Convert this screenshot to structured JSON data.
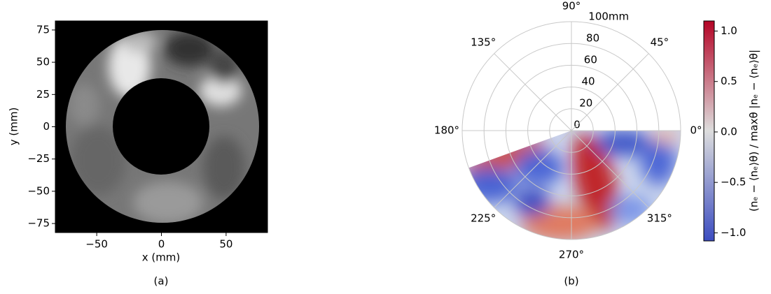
{
  "chart_data": [
    {
      "type": "image",
      "label": "(a)",
      "xlabel": "x (mm)",
      "ylabel": "y (mm)",
      "xlim": [
        -82,
        82
      ],
      "ylim": [
        -82,
        82
      ],
      "xticks": [
        {
          "value": -50,
          "label": "−50"
        },
        0,
        50
      ],
      "yticks": [
        75,
        50,
        25,
        0,
        {
          "value": -25,
          "label": "−25"
        },
        {
          "value": -50,
          "label": "−50"
        },
        {
          "value": -75,
          "label": "−75"
        }
      ]
    },
    {
      "type": "polar",
      "label": "(b)",
      "rlim": [
        0,
        100
      ],
      "rticks": [
        0,
        20,
        40,
        60,
        80,
        {
          "value": 100,
          "label": "100mm"
        }
      ],
      "thetaticks": [
        {
          "value": 0,
          "label": "0°"
        },
        {
          "value": 45,
          "label": "45°"
        },
        {
          "value": 90,
          "label": "90°"
        },
        {
          "value": 135,
          "label": "135°"
        },
        {
          "value": 180,
          "label": "180°"
        },
        {
          "value": 225,
          "label": "225°"
        },
        {
          "value": 270,
          "label": "270°"
        },
        {
          "value": 315,
          "label": "315°"
        }
      ],
      "colorbar": {
        "label": "(nₑ − ⟨nₑ⟩θ) / maxθ |nₑ − ⟨nₑ⟩θ|",
        "colors": [
          "#3b4cc0",
          "#dddddd",
          "#b40426"
        ],
        "lim": [
          -1.08,
          1.1
        ],
        "ticks": [
          {
            "value": 1,
            "label": "1.0"
          },
          0.5,
          {
            "value": 0,
            "label": "0.0"
          },
          {
            "value": -0.5,
            "label": "−0.5"
          },
          {
            "value": -1,
            "label": "−1.0"
          }
        ]
      }
    }
  ]
}
